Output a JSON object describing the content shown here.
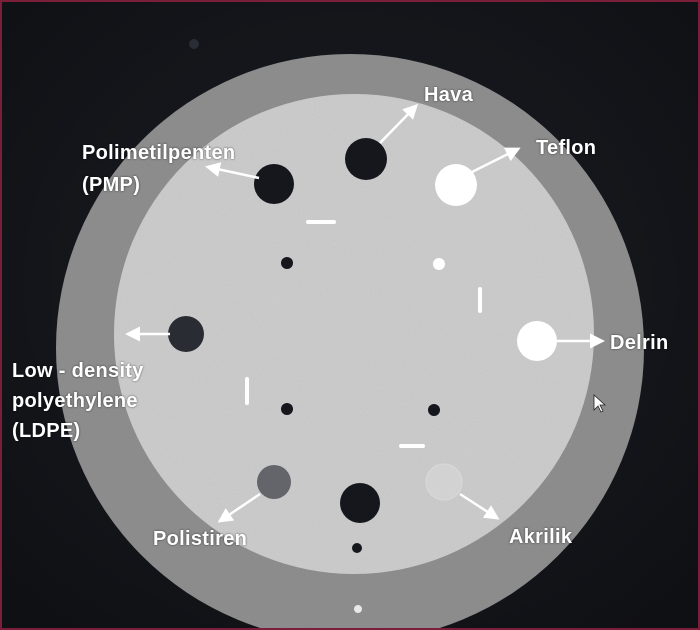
{
  "phantom": {
    "outer_ring_color": "#8f8f8f",
    "inner_disk_color": "#cdcdcd",
    "background_color": "#141519",
    "air_insert_color": "#15171c",
    "dense_insert_color": "#ffffff"
  },
  "labels": {
    "hava": "Hava",
    "teflon": "Teflon",
    "pmp_line1": "Polimetilpenten",
    "pmp_line2": "(PMP)",
    "delrin": "Delrin",
    "ldpe_line1": "Low - density",
    "ldpe_line2": "polyethylene",
    "ldpe_line3": "(LDPE)",
    "polistiren": "Polistiren",
    "akrilik": "Akrilik"
  }
}
